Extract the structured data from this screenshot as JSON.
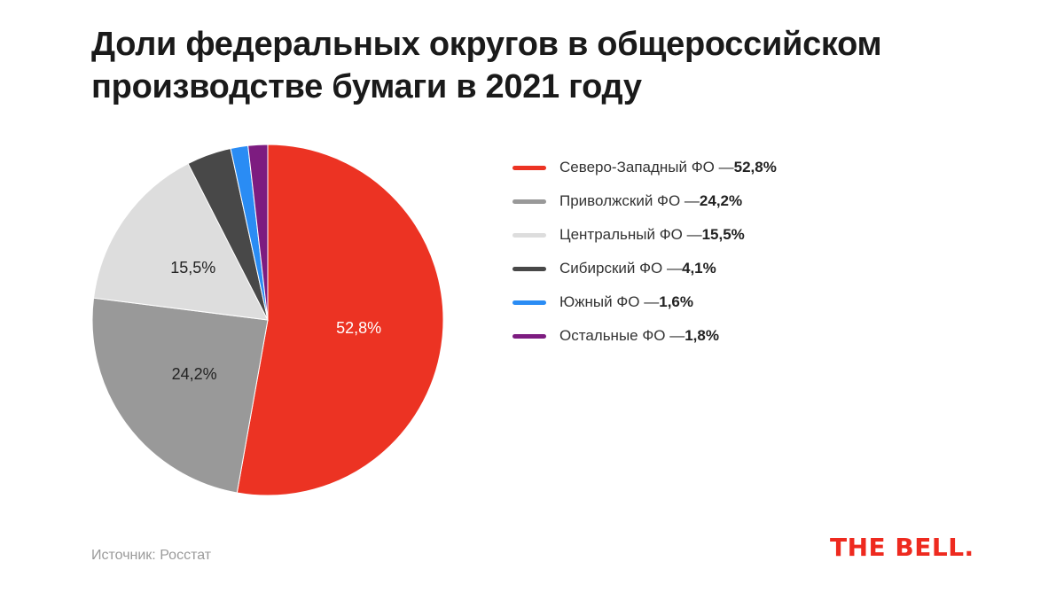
{
  "header": {
    "title": "Доли федеральных округов в общероссийском производстве бумаги в 2021 году"
  },
  "footer": {
    "source": "Источник: Росстат",
    "logo": "THE BELL."
  },
  "legend": {
    "separator": " — ",
    "placement": "right"
  },
  "chart_data": {
    "type": "pie",
    "title": "Доли федеральных округов в общероссийском производстве бумаги в 2021 году",
    "unit": "%",
    "slices": [
      {
        "name": "Северо-Западный ФО",
        "value": 52.8,
        "label": "52,8%",
        "value_text": "52,8%",
        "color": "#ec3323",
        "label_color": "#ffffff",
        "show_label": true
      },
      {
        "name": "Приволжский ФО",
        "value": 24.2,
        "label": "24,2%",
        "value_text": "24,2%",
        "color": "#999999",
        "label_color": "#222222",
        "show_label": true
      },
      {
        "name": "Центральный ФО",
        "value": 15.5,
        "label": "15,5%",
        "value_text": "15,5%",
        "color": "#dddddd",
        "label_color": "#222222",
        "show_label": true
      },
      {
        "name": "Сибирский ФО",
        "value": 4.1,
        "label": "4,1%",
        "value_text": "4,1%",
        "color": "#484848",
        "label_color": "#ffffff",
        "show_label": false
      },
      {
        "name": "Южный ФО",
        "value": 1.6,
        "label": "1,6%",
        "value_text": "1,6%",
        "color": "#2a8cf4",
        "label_color": "#ffffff",
        "show_label": false
      },
      {
        "name": "Остальные ФО",
        "value": 1.8,
        "label": "1,8%",
        "value_text": "1,8%",
        "color": "#7d1c80",
        "label_color": "#ffffff",
        "show_label": false
      }
    ]
  }
}
